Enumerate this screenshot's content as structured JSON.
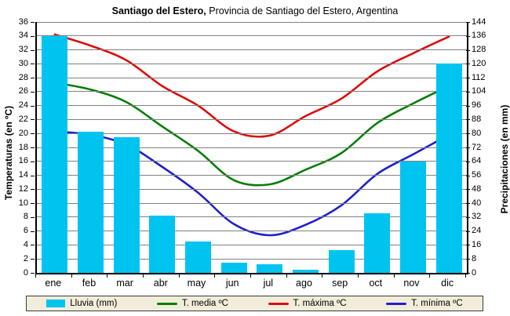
{
  "window": {
    "title_bold": "Santiago del Estero,",
    "title_rest": " Provincia de Santiago del Estero, Argentina"
  },
  "axes": {
    "left_title": "Temperaturas (en ºC)",
    "right_title": "Precipitaciones (en mm)",
    "left_min": 0,
    "left_max": 36,
    "left_step": 2,
    "right_min": 0,
    "right_max": 144,
    "right_step": 8
  },
  "colors": {
    "bar": "#00c4f0",
    "tmedia": "#067d06",
    "tmaxima": "#dd0d0d",
    "tminima": "#1f1fd0",
    "grid": "#808080",
    "legend_bg": "#f2edda"
  },
  "legend": {
    "lluvia": "Lluvia (mm)",
    "tmedia": "T. media ºC",
    "tmaxima": "T. máxima ºC",
    "tminima": "T. mínima ºC"
  },
  "chart_data": {
    "type": "bar",
    "title": "Santiago del Estero, Provincia de Santiago del Estero, Argentina",
    "categories": [
      "ene",
      "feb",
      "mar",
      "abr",
      "may",
      "jun",
      "jul",
      "ago",
      "sep",
      "oct",
      "nov",
      "dic"
    ],
    "series": [
      {
        "name": "Lluvia (mm)",
        "type": "bar",
        "axis": "right",
        "color": "#00c4f0",
        "values": [
          136,
          81,
          78,
          33,
          18,
          6,
          5,
          2,
          13,
          34,
          64,
          120
        ]
      },
      {
        "name": "T. media ºC",
        "type": "line",
        "axis": "left",
        "color": "#067d06",
        "values": [
          27.3,
          26.3,
          24.5,
          21.0,
          17.5,
          13.3,
          12.7,
          14.8,
          17.2,
          21.5,
          24.3,
          26.8
        ]
      },
      {
        "name": "T. máxima ºC",
        "type": "line",
        "axis": "left",
        "color": "#dd0d0d",
        "values": [
          34.2,
          32.6,
          30.5,
          26.8,
          24.0,
          20.3,
          19.7,
          22.5,
          25.0,
          28.9,
          31.5,
          33.9
        ]
      },
      {
        "name": "T. mínima ºC",
        "type": "line",
        "axis": "left",
        "color": "#1f1fd0",
        "values": [
          20.3,
          19.8,
          18.4,
          15.2,
          11.5,
          7.0,
          5.4,
          6.9,
          9.7,
          14.2,
          17.0,
          19.8
        ]
      }
    ],
    "ylabel_left": "Temperaturas (en ºC)",
    "ylabel_right": "Precipitaciones (en mm)",
    "ylim_left": [
      0,
      36
    ],
    "ylim_right": [
      0,
      144
    ],
    "grid": "horizontal",
    "legend_position": "bottom"
  }
}
